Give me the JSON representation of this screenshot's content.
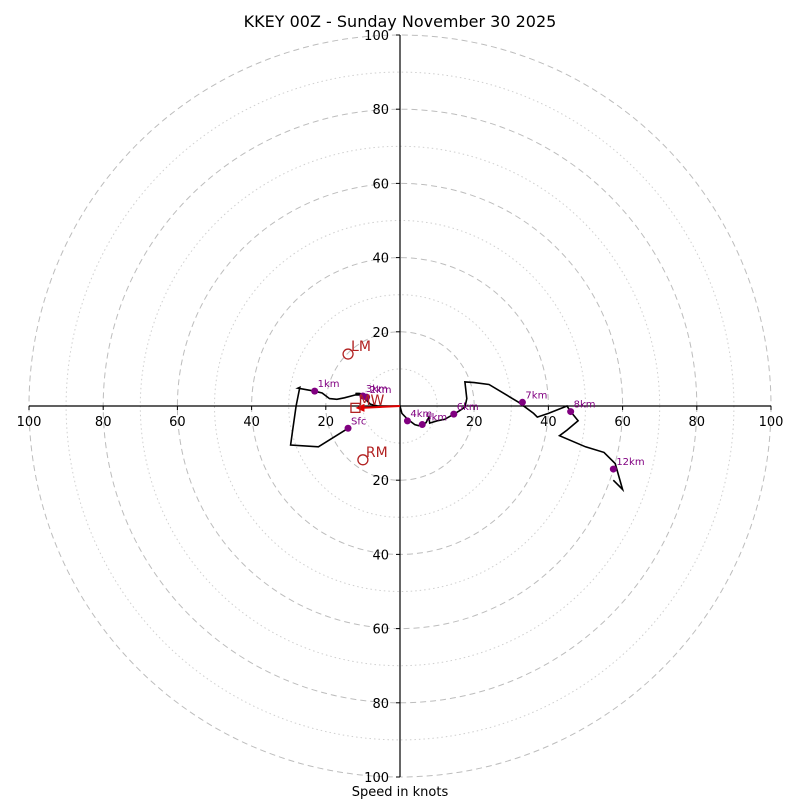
{
  "chart_data": {
    "type": "hodograph",
    "title": "KKEY 00Z - Sunday November 30 2025",
    "xlabel": "Speed in knots",
    "range": 100,
    "major_rings": [
      20,
      40,
      60,
      80,
      100
    ],
    "minor_rings": [
      10,
      30,
      50,
      70,
      90
    ],
    "x_ticks": [
      {
        "value": -100,
        "label": "100"
      },
      {
        "value": -80,
        "label": "80"
      },
      {
        "value": -60,
        "label": "60"
      },
      {
        "value": -40,
        "label": "40"
      },
      {
        "value": -20,
        "label": "20"
      },
      {
        "value": 20,
        "label": "20"
      },
      {
        "value": 40,
        "label": "40"
      },
      {
        "value": 60,
        "label": "60"
      },
      {
        "value": 80,
        "label": "80"
      },
      {
        "value": 100,
        "label": "100"
      }
    ],
    "y_ticks": [
      {
        "value": 100,
        "label": "100"
      },
      {
        "value": 80,
        "label": "80"
      },
      {
        "value": 60,
        "label": "60"
      },
      {
        "value": 40,
        "label": "40"
      },
      {
        "value": 20,
        "label": "20"
      },
      {
        "value": -20,
        "label": "20"
      },
      {
        "value": -40,
        "label": "40"
      },
      {
        "value": -60,
        "label": "60"
      },
      {
        "value": -80,
        "label": "80"
      },
      {
        "value": -100,
        "label": "100"
      }
    ],
    "hodograph_trace": [
      [
        -14,
        -6
      ],
      [
        -22,
        -11
      ],
      [
        -29.5,
        -10.5
      ],
      [
        -29,
        -7
      ],
      [
        -28,
        0
      ],
      [
        -27,
        5
      ],
      [
        -27.5,
        4.8
      ],
      [
        -23,
        4
      ],
      [
        -21,
        3.5
      ],
      [
        -19,
        2
      ],
      [
        -17,
        1.8
      ],
      [
        -15,
        2.2
      ],
      [
        -12,
        3
      ],
      [
        -11,
        3
      ],
      [
        -10,
        2.7
      ],
      [
        -9,
        2.4
      ],
      [
        -10,
        3.2
      ],
      [
        -11,
        3.4
      ],
      [
        -12,
        3.4
      ],
      [
        -11,
        3
      ],
      [
        -10,
        2.7
      ],
      [
        -9,
        1.5
      ],
      [
        -8,
        0.5
      ],
      [
        -6,
        0
      ],
      [
        -2,
        0
      ],
      [
        0,
        0
      ],
      [
        0.5,
        -2
      ],
      [
        2,
        -3.5
      ],
      [
        4,
        -5
      ],
      [
        5,
        -5.3
      ],
      [
        7,
        -4.5
      ],
      [
        7.8,
        -3
      ],
      [
        8,
        -4.6
      ],
      [
        10,
        -4
      ],
      [
        12,
        -3.6
      ],
      [
        14.5,
        -2.2
      ],
      [
        16,
        -1.3
      ],
      [
        17.5,
        -0.3
      ],
      [
        17.8,
        1
      ],
      [
        18,
        2
      ],
      [
        17.5,
        6.5
      ],
      [
        20,
        6.3
      ],
      [
        24,
        5.8
      ],
      [
        32,
        1
      ],
      [
        36,
        -2
      ],
      [
        37,
        -3
      ],
      [
        40,
        -2
      ],
      [
        45,
        0
      ],
      [
        46,
        -1.5
      ],
      [
        48,
        -4
      ],
      [
        45,
        -6.5
      ],
      [
        43,
        -8
      ],
      [
        50,
        -11
      ],
      [
        55,
        -12.5
      ],
      [
        58,
        -15.5
      ],
      [
        60,
        -22.5
      ],
      [
        57.5,
        -20
      ]
    ],
    "km_markers": [
      {
        "label": "Sfc",
        "u": -14,
        "v": -6
      },
      {
        "label": "1km",
        "u": -23,
        "v": 4
      },
      {
        "label": "2km",
        "u": -9,
        "v": 2.4
      },
      {
        "label": "3km",
        "u": -10,
        "v": 2.7
      },
      {
        "label": "4km",
        "u": 2,
        "v": -4
      },
      {
        "label": "5km",
        "u": 6,
        "v": -5
      },
      {
        "label": "6km",
        "u": 14.5,
        "v": -2.2
      },
      {
        "label": "7km",
        "u": 33,
        "v": 1
      },
      {
        "label": "8km",
        "u": 46,
        "v": -1.5
      },
      {
        "label": "12km",
        "u": 57.5,
        "v": -17
      }
    ],
    "storm_motions": [
      {
        "label": "LM",
        "u": -14,
        "v": 14
      },
      {
        "label": "RM",
        "u": -10,
        "v": -14.5
      },
      {
        "label": "MW",
        "u": -12,
        "v": -0.5
      }
    ],
    "shear_vector": {
      "from": [
        0,
        0
      ],
      "to": [
        -12,
        -0.5
      ]
    },
    "colors": {
      "trace": "#000000",
      "km_marker": "#800080",
      "motion": "#b22222",
      "shear_vector": "#e00000"
    }
  }
}
